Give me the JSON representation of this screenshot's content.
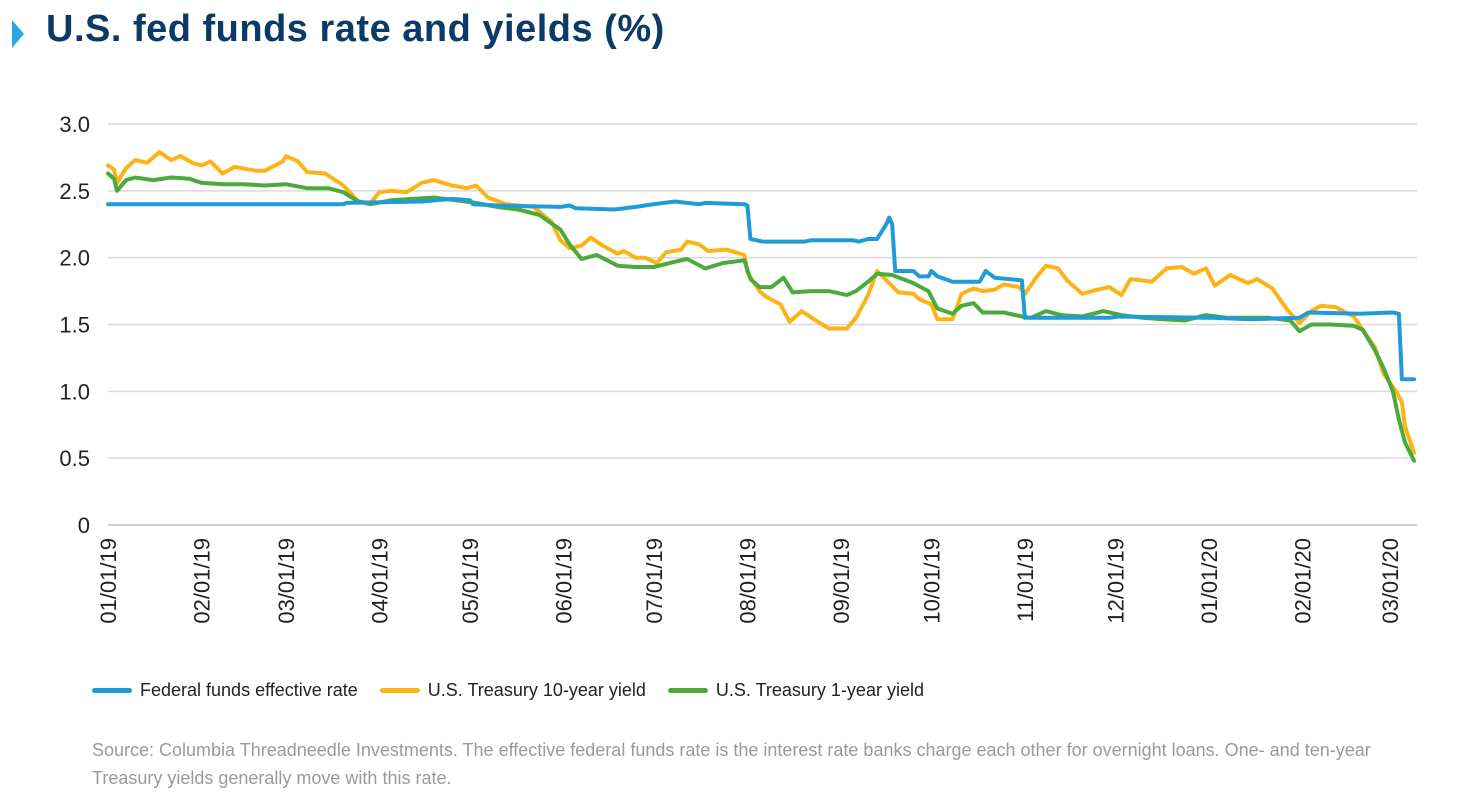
{
  "title": "U.S. fed funds rate and yields (%)",
  "source": "Source: Columbia Threadneedle Investments. The effective federal funds rate is the interest rate banks charge each other for overnight loans. One- and ten-year Treasury yields generally move with this rate.",
  "chart_data": {
    "type": "line",
    "ylim": [
      0,
      3.0
    ],
    "yticks": [
      "0",
      "0.5",
      "1.0",
      "1.5",
      "2.0",
      "2.5",
      "3.0"
    ],
    "xlim": [
      "2019-01-01",
      "2020-03-10"
    ],
    "xticks": [
      {
        "date": "2019-01-01",
        "label": "01/01/19"
      },
      {
        "date": "2019-02-01",
        "label": "02/01/19"
      },
      {
        "date": "2019-03-01",
        "label": "03/01/19"
      },
      {
        "date": "2019-04-01",
        "label": "04/01/19"
      },
      {
        "date": "2019-05-01",
        "label": "05/01/19"
      },
      {
        "date": "2019-06-01",
        "label": "06/01/19"
      },
      {
        "date": "2019-07-01",
        "label": "07/01/19"
      },
      {
        "date": "2019-08-01",
        "label": "08/01/19"
      },
      {
        "date": "2019-09-01",
        "label": "09/01/19"
      },
      {
        "date": "2019-10-01",
        "label": "10/01/19"
      },
      {
        "date": "2019-11-01",
        "label": "11/01/19"
      },
      {
        "date": "2019-12-01",
        "label": "12/01/19"
      },
      {
        "date": "2020-01-01",
        "label": "01/01/20"
      },
      {
        "date": "2020-02-01",
        "label": "02/01/20"
      },
      {
        "date": "2020-03-01",
        "label": "03/01/20"
      }
    ],
    "grid": true,
    "legend_position": "bottom",
    "series": [
      {
        "name": "Federal funds effective rate",
        "color": "#1f9bd7",
        "points": [
          [
            "2019-01-01",
            2.4
          ],
          [
            "2019-03-20",
            2.4
          ],
          [
            "2019-03-21",
            2.41
          ],
          [
            "2019-04-15",
            2.42
          ],
          [
            "2019-04-25",
            2.44
          ],
          [
            "2019-05-01",
            2.43
          ],
          [
            "2019-05-02",
            2.4
          ],
          [
            "2019-05-10",
            2.39
          ],
          [
            "2019-05-31",
            2.38
          ],
          [
            "2019-06-03",
            2.39
          ],
          [
            "2019-06-05",
            2.37
          ],
          [
            "2019-06-18",
            2.36
          ],
          [
            "2019-06-25",
            2.38
          ],
          [
            "2019-06-28",
            2.39
          ],
          [
            "2019-07-01",
            2.4
          ],
          [
            "2019-07-08",
            2.42
          ],
          [
            "2019-07-16",
            2.4
          ],
          [
            "2019-07-18",
            2.41
          ],
          [
            "2019-07-31",
            2.4
          ],
          [
            "2019-08-01",
            2.39
          ],
          [
            "2019-08-02",
            2.14
          ],
          [
            "2019-08-06",
            2.12
          ],
          [
            "2019-08-20",
            2.12
          ],
          [
            "2019-08-22",
            2.13
          ],
          [
            "2019-09-05",
            2.13
          ],
          [
            "2019-09-07",
            2.12
          ],
          [
            "2019-09-10",
            2.14
          ],
          [
            "2019-09-13",
            2.14
          ],
          [
            "2019-09-16",
            2.25
          ],
          [
            "2019-09-17",
            2.3
          ],
          [
            "2019-09-18",
            2.25
          ],
          [
            "2019-09-19",
            1.9
          ],
          [
            "2019-09-25",
            1.9
          ],
          [
            "2019-09-27",
            1.86
          ],
          [
            "2019-09-30",
            1.86
          ],
          [
            "2019-10-01",
            1.9
          ],
          [
            "2019-10-03",
            1.86
          ],
          [
            "2019-10-08",
            1.82
          ],
          [
            "2019-10-17",
            1.82
          ],
          [
            "2019-10-19",
            1.9
          ],
          [
            "2019-10-22",
            1.85
          ],
          [
            "2019-10-31",
            1.83
          ],
          [
            "2019-11-01",
            1.55
          ],
          [
            "2019-11-29",
            1.55
          ],
          [
            "2019-12-02",
            1.56
          ],
          [
            "2019-12-31",
            1.55
          ],
          [
            "2020-01-02",
            1.55
          ],
          [
            "2020-01-15",
            1.54
          ],
          [
            "2020-01-31",
            1.55
          ],
          [
            "2020-02-03",
            1.59
          ],
          [
            "2020-02-20",
            1.58
          ],
          [
            "2020-03-02",
            1.59
          ],
          [
            "2020-03-04",
            1.58
          ],
          [
            "2020-03-05",
            1.09
          ],
          [
            "2020-03-09",
            1.09
          ]
        ]
      },
      {
        "name": "U.S. Treasury 10-year yield",
        "color": "#fcb316",
        "points": [
          [
            "2019-01-01",
            2.69
          ],
          [
            "2019-01-03",
            2.66
          ],
          [
            "2019-01-04",
            2.56
          ],
          [
            "2019-01-07",
            2.67
          ],
          [
            "2019-01-10",
            2.73
          ],
          [
            "2019-01-14",
            2.71
          ],
          [
            "2019-01-18",
            2.79
          ],
          [
            "2019-01-22",
            2.73
          ],
          [
            "2019-01-25",
            2.76
          ],
          [
            "2019-01-29",
            2.71
          ],
          [
            "2019-02-01",
            2.69
          ],
          [
            "2019-02-04",
            2.72
          ],
          [
            "2019-02-08",
            2.63
          ],
          [
            "2019-02-12",
            2.68
          ],
          [
            "2019-02-19",
            2.65
          ],
          [
            "2019-02-22",
            2.65
          ],
          [
            "2019-02-28",
            2.72
          ],
          [
            "2019-03-01",
            2.76
          ],
          [
            "2019-03-05",
            2.72
          ],
          [
            "2019-03-08",
            2.64
          ],
          [
            "2019-03-14",
            2.63
          ],
          [
            "2019-03-20",
            2.54
          ],
          [
            "2019-03-25",
            2.42
          ],
          [
            "2019-03-29",
            2.41
          ],
          [
            "2019-04-01",
            2.49
          ],
          [
            "2019-04-05",
            2.5
          ],
          [
            "2019-04-10",
            2.49
          ],
          [
            "2019-04-15",
            2.56
          ],
          [
            "2019-04-19",
            2.58
          ],
          [
            "2019-04-25",
            2.54
          ],
          [
            "2019-04-30",
            2.52
          ],
          [
            "2019-05-03",
            2.54
          ],
          [
            "2019-05-07",
            2.45
          ],
          [
            "2019-05-13",
            2.4
          ],
          [
            "2019-05-17",
            2.39
          ],
          [
            "2019-05-22",
            2.38
          ],
          [
            "2019-05-28",
            2.27
          ],
          [
            "2019-05-31",
            2.13
          ],
          [
            "2019-06-03",
            2.07
          ],
          [
            "2019-06-07",
            2.09
          ],
          [
            "2019-06-10",
            2.15
          ],
          [
            "2019-06-14",
            2.09
          ],
          [
            "2019-06-19",
            2.03
          ],
          [
            "2019-06-21",
            2.05
          ],
          [
            "2019-06-25",
            2.0
          ],
          [
            "2019-06-28",
            2.0
          ],
          [
            "2019-07-02",
            1.96
          ],
          [
            "2019-07-05",
            2.04
          ],
          [
            "2019-07-10",
            2.06
          ],
          [
            "2019-07-12",
            2.12
          ],
          [
            "2019-07-16",
            2.1
          ],
          [
            "2019-07-19",
            2.05
          ],
          [
            "2019-07-25",
            2.06
          ],
          [
            "2019-07-31",
            2.02
          ],
          [
            "2019-08-01",
            1.89
          ],
          [
            "2019-08-05",
            1.75
          ],
          [
            "2019-08-07",
            1.71
          ],
          [
            "2019-08-12",
            1.65
          ],
          [
            "2019-08-15",
            1.52
          ],
          [
            "2019-08-19",
            1.6
          ],
          [
            "2019-08-23",
            1.54
          ],
          [
            "2019-08-28",
            1.47
          ],
          [
            "2019-09-03",
            1.47
          ],
          [
            "2019-09-06",
            1.55
          ],
          [
            "2019-09-10",
            1.72
          ],
          [
            "2019-09-13",
            1.9
          ],
          [
            "2019-09-17",
            1.81
          ],
          [
            "2019-09-20",
            1.74
          ],
          [
            "2019-09-25",
            1.73
          ],
          [
            "2019-09-27",
            1.69
          ],
          [
            "2019-10-01",
            1.65
          ],
          [
            "2019-10-03",
            1.54
          ],
          [
            "2019-10-08",
            1.54
          ],
          [
            "2019-10-11",
            1.73
          ],
          [
            "2019-10-15",
            1.77
          ],
          [
            "2019-10-18",
            1.75
          ],
          [
            "2019-10-22",
            1.76
          ],
          [
            "2019-10-25",
            1.8
          ],
          [
            "2019-10-30",
            1.78
          ],
          [
            "2019-11-01",
            1.73
          ],
          [
            "2019-11-05",
            1.86
          ],
          [
            "2019-11-08",
            1.94
          ],
          [
            "2019-11-12",
            1.92
          ],
          [
            "2019-11-15",
            1.83
          ],
          [
            "2019-11-20",
            1.73
          ],
          [
            "2019-11-25",
            1.76
          ],
          [
            "2019-11-29",
            1.78
          ],
          [
            "2019-12-03",
            1.72
          ],
          [
            "2019-12-06",
            1.84
          ],
          [
            "2019-12-10",
            1.83
          ],
          [
            "2019-12-13",
            1.82
          ],
          [
            "2019-12-18",
            1.92
          ],
          [
            "2019-12-23",
            1.93
          ],
          [
            "2019-12-27",
            1.88
          ],
          [
            "2019-12-31",
            1.92
          ],
          [
            "2020-01-03",
            1.79
          ],
          [
            "2020-01-08",
            1.87
          ],
          [
            "2020-01-14",
            1.81
          ],
          [
            "2020-01-17",
            1.84
          ],
          [
            "2020-01-22",
            1.77
          ],
          [
            "2020-01-27",
            1.61
          ],
          [
            "2020-01-31",
            1.51
          ],
          [
            "2020-02-04",
            1.6
          ],
          [
            "2020-02-07",
            1.64
          ],
          [
            "2020-02-12",
            1.63
          ],
          [
            "2020-02-18",
            1.56
          ],
          [
            "2020-02-21",
            1.46
          ],
          [
            "2020-02-25",
            1.33
          ],
          [
            "2020-02-28",
            1.13
          ],
          [
            "2020-03-03",
            1.0
          ],
          [
            "2020-03-05",
            0.92
          ],
          [
            "2020-03-06",
            0.74
          ],
          [
            "2020-03-09",
            0.54
          ]
        ]
      },
      {
        "name": "U.S. Treasury 1-year yield",
        "color": "#4caa3c",
        "points": [
          [
            "2019-01-01",
            2.63
          ],
          [
            "2019-01-03",
            2.59
          ],
          [
            "2019-01-04",
            2.5
          ],
          [
            "2019-01-07",
            2.58
          ],
          [
            "2019-01-10",
            2.6
          ],
          [
            "2019-01-16",
            2.58
          ],
          [
            "2019-01-22",
            2.6
          ],
          [
            "2019-01-28",
            2.59
          ],
          [
            "2019-02-01",
            2.56
          ],
          [
            "2019-02-08",
            2.55
          ],
          [
            "2019-02-15",
            2.55
          ],
          [
            "2019-02-22",
            2.54
          ],
          [
            "2019-03-01",
            2.55
          ],
          [
            "2019-03-08",
            2.52
          ],
          [
            "2019-03-15",
            2.52
          ],
          [
            "2019-03-20",
            2.49
          ],
          [
            "2019-03-25",
            2.42
          ],
          [
            "2019-03-29",
            2.4
          ],
          [
            "2019-04-05",
            2.43
          ],
          [
            "2019-04-12",
            2.44
          ],
          [
            "2019-04-19",
            2.45
          ],
          [
            "2019-04-26",
            2.43
          ],
          [
            "2019-05-03",
            2.41
          ],
          [
            "2019-05-10",
            2.38
          ],
          [
            "2019-05-17",
            2.36
          ],
          [
            "2019-05-24",
            2.32
          ],
          [
            "2019-05-31",
            2.21
          ],
          [
            "2019-06-03",
            2.1
          ],
          [
            "2019-06-07",
            1.99
          ],
          [
            "2019-06-12",
            2.02
          ],
          [
            "2019-06-19",
            1.94
          ],
          [
            "2019-06-25",
            1.93
          ],
          [
            "2019-07-01",
            1.93
          ],
          [
            "2019-07-08",
            1.97
          ],
          [
            "2019-07-12",
            1.99
          ],
          [
            "2019-07-18",
            1.92
          ],
          [
            "2019-07-24",
            1.96
          ],
          [
            "2019-07-31",
            1.98
          ],
          [
            "2019-08-02",
            1.84
          ],
          [
            "2019-08-05",
            1.78
          ],
          [
            "2019-08-09",
            1.78
          ],
          [
            "2019-08-13",
            1.85
          ],
          [
            "2019-08-16",
            1.74
          ],
          [
            "2019-08-22",
            1.75
          ],
          [
            "2019-08-28",
            1.75
          ],
          [
            "2019-09-03",
            1.72
          ],
          [
            "2019-09-06",
            1.75
          ],
          [
            "2019-09-10",
            1.82
          ],
          [
            "2019-09-13",
            1.88
          ],
          [
            "2019-09-18",
            1.87
          ],
          [
            "2019-09-25",
            1.81
          ],
          [
            "2019-09-30",
            1.75
          ],
          [
            "2019-10-03",
            1.62
          ],
          [
            "2019-10-08",
            1.58
          ],
          [
            "2019-10-11",
            1.64
          ],
          [
            "2019-10-15",
            1.66
          ],
          [
            "2019-10-18",
            1.59
          ],
          [
            "2019-10-25",
            1.59
          ],
          [
            "2019-10-31",
            1.56
          ],
          [
            "2019-11-03",
            1.55
          ],
          [
            "2019-11-08",
            1.6
          ],
          [
            "2019-11-13",
            1.57
          ],
          [
            "2019-11-20",
            1.56
          ],
          [
            "2019-11-27",
            1.6
          ],
          [
            "2019-12-03",
            1.57
          ],
          [
            "2019-12-10",
            1.55
          ],
          [
            "2019-12-17",
            1.54
          ],
          [
            "2019-12-24",
            1.53
          ],
          [
            "2019-12-31",
            1.57
          ],
          [
            "2020-01-07",
            1.55
          ],
          [
            "2020-01-14",
            1.55
          ],
          [
            "2020-01-21",
            1.55
          ],
          [
            "2020-01-28",
            1.53
          ],
          [
            "2020-01-31",
            1.45
          ],
          [
            "2020-02-04",
            1.5
          ],
          [
            "2020-02-10",
            1.5
          ],
          [
            "2020-02-18",
            1.49
          ],
          [
            "2020-02-21",
            1.46
          ],
          [
            "2020-02-25",
            1.31
          ],
          [
            "2020-02-28",
            1.17
          ],
          [
            "2020-03-02",
            1.0
          ],
          [
            "2020-03-04",
            0.79
          ],
          [
            "2020-03-06",
            0.62
          ],
          [
            "2020-03-09",
            0.48
          ]
        ]
      }
    ]
  }
}
